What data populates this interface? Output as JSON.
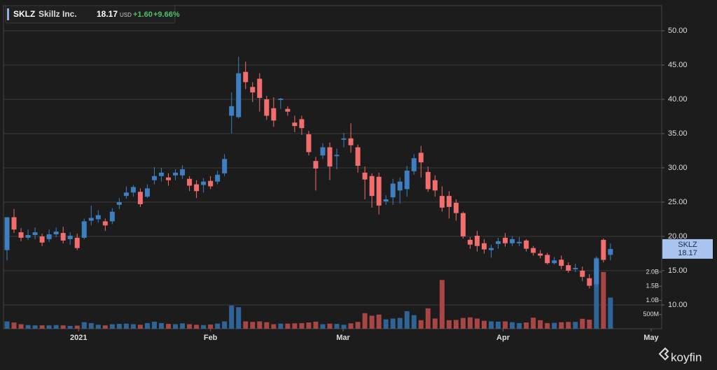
{
  "header": {
    "symbol": "SKLZ",
    "name": "Skillz Inc.",
    "price": 18.17,
    "currency": "USD",
    "change": "+1.60",
    "change_pct": "+9.66%"
  },
  "chart_data": {
    "type": "candlestick",
    "open": [
      18,
      22.8,
      20.6,
      19.8,
      20.2,
      20,
      19.6,
      20.3,
      20.5,
      19.6,
      19.8,
      19.8,
      22.3,
      22.5,
      22.2,
      22.2,
      24.6,
      25.9,
      26.4,
      26.5,
      25.8,
      28.2,
      28.8,
      28.6,
      28.9,
      28.9,
      28.4,
      27.6,
      27.5,
      28.1,
      28,
      29.2,
      37.6,
      37.4,
      44,
      41.8,
      43,
      40,
      38.7,
      39.9,
      38.6,
      36.6,
      37.1,
      34.9,
      31,
      31.8,
      33,
      31.7,
      34.1,
      34.3,
      33,
      29.3,
      28.8,
      28.7,
      25.1,
      25.7,
      26.7,
      26.9,
      29.5,
      32.2,
      29.4,
      28.2,
      25.9,
      25.9,
      24.9,
      23.4,
      19.5,
      20.1,
      19,
      18,
      18.9,
      19.8,
      19,
      19,
      19.4,
      18.3,
      17.5,
      17.3,
      16.1,
      16.6,
      15.8,
      15.2,
      15,
      13.9,
      13,
      19.5,
      17.3
    ],
    "high": [
      22.8,
      24,
      21.2,
      21,
      21.3,
      20.4,
      21,
      21.3,
      21.4,
      20.6,
      20.4,
      22.6,
      24.5,
      23.8,
      22.6,
      24.1,
      25.6,
      27.3,
      27.5,
      27,
      27.6,
      30.1,
      30,
      29.2,
      29.8,
      30.4,
      28.8,
      28.2,
      28.5,
      28.8,
      29.6,
      32,
      41,
      46.2,
      45.5,
      42.5,
      43.8,
      40.5,
      40.3,
      40.2,
      39,
      37.6,
      37.6,
      35.4,
      31.6,
      33.6,
      33.7,
      32.8,
      35.1,
      36.5,
      33.4,
      30.2,
      29.2,
      29.3,
      26,
      28.4,
      28.6,
      30.3,
      32,
      33.2,
      30.2,
      28.9,
      27.3,
      26.6,
      25.4,
      23.6,
      19.9,
      20.8,
      19.6,
      18.8,
      19.8,
      20.5,
      20,
      19.9,
      19.6,
      18.6,
      18,
      17.6,
      17,
      17.2,
      16.2,
      16,
      15.6,
      14.5,
      17.1,
      19.7,
      19
    ],
    "low": [
      16.5,
      20.5,
      19.3,
      19.5,
      19.6,
      18.6,
      19.2,
      19.9,
      19,
      18.8,
      18,
      19.6,
      21.6,
      22,
      20.8,
      21.8,
      24,
      25.5,
      25.8,
      24.3,
      25.6,
      27.6,
      28,
      27.4,
      28.2,
      28.4,
      26.6,
      25.6,
      26.4,
      26.9,
      27.6,
      28.8,
      35,
      37.2,
      41.5,
      39.6,
      38.2,
      37,
      36,
      38.6,
      37.6,
      35.2,
      34.8,
      31.8,
      26.7,
      31.3,
      28.2,
      29.8,
      33,
      32.2,
      29.3,
      25.4,
      24.2,
      23.2,
      24.6,
      24.6,
      24.8,
      25.8,
      29,
      28.6,
      26.5,
      25.8,
      23.6,
      22.6,
      22.3,
      19.7,
      18.2,
      17.8,
      17.5,
      16.9,
      18.2,
      18.5,
      18.6,
      18.6,
      17.8,
      17.2,
      16.8,
      15.9,
      15.9,
      15.2,
      14.7,
      14.8,
      13.5,
      12.4,
      12.7,
      16.2,
      16.5
    ],
    "close": [
      22.8,
      21,
      19.8,
      20.2,
      20.6,
      19.1,
      20.3,
      20.7,
      19.4,
      20.1,
      18.3,
      22.2,
      22.7,
      23.1,
      21.6,
      23.6,
      25,
      26.4,
      27.2,
      24.7,
      27,
      28.8,
      29.3,
      28.2,
      29.3,
      29.8,
      27.4,
      26.6,
      28,
      27.3,
      29,
      31.3,
      39,
      43.8,
      42.5,
      41,
      40.2,
      37.6,
      36.9,
      40.1,
      38.2,
      36.1,
      35.8,
      32.3,
      29.9,
      33,
      30.2,
      31.9,
      34.3,
      33.3,
      30.3,
      28.3,
      25.9,
      24.5,
      25.4,
      27.7,
      28,
      29.6,
      31.4,
      30.8,
      26.9,
      26.7,
      24.2,
      24.3,
      23.4,
      20,
      18.8,
      18.6,
      18.1,
      18.3,
      19.3,
      19,
      19.6,
      19.2,
      18.2,
      17.6,
      17.2,
      16.1,
      16.5,
      15.7,
      15,
      15.4,
      14.1,
      12.8,
      16.7,
      16.57,
      18.17
    ],
    "volume": [
      260000000.0,
      220000000.0,
      160000000.0,
      130000000.0,
      120000000.0,
      120000000.0,
      120000000.0,
      130000000.0,
      120000000.0,
      100000000.0,
      110000000.0,
      230000000.0,
      200000000.0,
      140000000.0,
      120000000.0,
      160000000.0,
      170000000.0,
      180000000.0,
      160000000.0,
      140000000.0,
      200000000.0,
      250000000.0,
      200000000.0,
      170000000.0,
      160000000.0,
      190000000.0,
      160000000.0,
      140000000.0,
      130000000.0,
      150000000.0,
      180000000.0,
      260000000.0,
      820000000.0,
      760000000.0,
      260000000.0,
      240000000.0,
      260000000.0,
      230000000.0,
      160000000.0,
      180000000.0,
      180000000.0,
      190000000.0,
      200000000.0,
      220000000.0,
      250000000.0,
      160000000.0,
      180000000.0,
      170000000.0,
      140000000.0,
      190000000.0,
      240000000.0,
      550000000.0,
      460000000.0,
      500000000.0,
      330000000.0,
      360000000.0,
      380000000.0,
      620000000.0,
      480000000.0,
      300000000.0,
      720000000.0,
      360000000.0,
      1720000000.0,
      300000000.0,
      310000000.0,
      380000000.0,
      400000000.0,
      360000000.0,
      280000000.0,
      260000000.0,
      250000000.0,
      260000000.0,
      230000000.0,
      200000000.0,
      220000000.0,
      390000000.0,
      300000000.0,
      200000000.0,
      210000000.0,
      230000000.0,
      240000000.0,
      240000000.0,
      350000000.0,
      320000000.0,
      2500000000.0,
      2000000000.0,
      1100000000.0
    ],
    "up_color": "#3e7fc1",
    "down_color": "#f26d6d",
    "volume_up_color": "#2f6496",
    "volume_down_color": "#a84646",
    "xlim": [
      -0.5,
      93.3
    ],
    "xticks": [
      {
        "value": 10.2,
        "label": "2021"
      },
      {
        "value": 29.0,
        "label": "Feb"
      },
      {
        "value": 47.9,
        "label": "Mar"
      },
      {
        "value": 70.7,
        "label": "Apr"
      },
      {
        "value": 91.8,
        "label": "May"
      }
    ],
    "ylim": [
      6.53,
      53.67
    ],
    "yticks": [
      {
        "value": 10,
        "label": "10.00"
      },
      {
        "value": 15,
        "label": "15.00"
      },
      {
        "value": 20,
        "label": "20.00"
      },
      {
        "value": 25,
        "label": "25.00"
      },
      {
        "value": 30,
        "label": "30.00"
      },
      {
        "value": 35,
        "label": "35.00"
      },
      {
        "value": 40,
        "label": "40.00"
      },
      {
        "value": 45,
        "label": "45.00"
      },
      {
        "value": 50,
        "label": "50.00"
      }
    ],
    "y2lim": [
      0,
      11400000000.0
    ],
    "y2ticks": [
      {
        "value": 500000000.0,
        "label": "500M"
      },
      {
        "value": 1000000000.0,
        "label": "1.0B"
      },
      {
        "value": 1500000000.0,
        "label": "1.5B"
      },
      {
        "value": 2000000000.0,
        "label": "2.0B"
      }
    ],
    "grid": true,
    "price_tag": {
      "name": "SKLZ",
      "value": 18.17
    }
  },
  "brand": "koyfin"
}
